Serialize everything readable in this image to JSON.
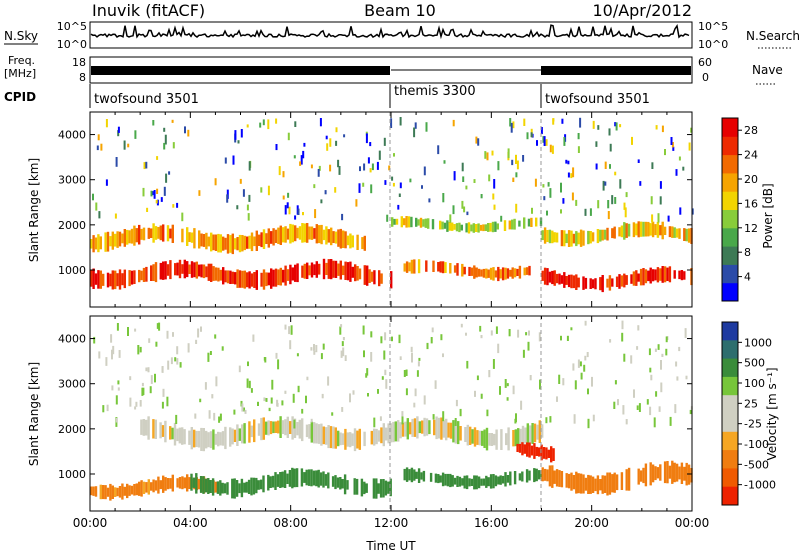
{
  "header": {
    "station": "Inuvik (fitACF)",
    "beam": "Beam 10",
    "date": "10/Apr/2012"
  },
  "sky_panel": {
    "left_label": "N.Sky",
    "right_label": "N.Search",
    "ticks": [
      "10^5",
      "10^0"
    ]
  },
  "freq_panel": {
    "left_label_top": "Freq.",
    "left_label_bottom": "[MHz]",
    "left_ticks": [
      "18",
      "8"
    ],
    "right_label": "Nave",
    "right_ticks": [
      "60",
      "0"
    ]
  },
  "cpid_panel": {
    "label": "CPID",
    "segments": [
      {
        "label": "twofsound 3501",
        "start_hour": 0,
        "end_hour": 12
      },
      {
        "label": "themis 3300",
        "start_hour": 12,
        "end_hour": 18
      },
      {
        "label": "twofsound 3501",
        "start_hour": 18,
        "end_hour": 24
      }
    ]
  },
  "colors": {
    "power_scale": [
      "#0000ff",
      "#2b4ba8",
      "#3d7a55",
      "#49a84a",
      "#88cc3a",
      "#f2d400",
      "#f6a400",
      "#f26a00",
      "#ee2a00",
      "#e60000"
    ],
    "velocity_scale": [
      "#1e3aa0",
      "#2d6e6e",
      "#3a8c3a",
      "#77c63a",
      "#cfcfc2",
      "#cfcfc2",
      "#f5a623",
      "#f07d10",
      "#f05a00",
      "#ee2200"
    ]
  },
  "chart_data": [
    {
      "type": "heatmap",
      "title": "",
      "xlabel": "",
      "ylabel": "Slant Range [km]",
      "xlim": [
        0,
        24
      ],
      "ylim": [
        180,
        4500
      ],
      "yticks": [
        "1000",
        "2000",
        "3000",
        "4000"
      ],
      "colorbar_label": "Power [dB]",
      "colorbar_ticks": [
        "4",
        "8",
        "12",
        "16",
        "20",
        "24",
        "28"
      ],
      "colorbar_range": [
        0,
        30
      ],
      "bands": [
        {
          "t_start": 0,
          "t_end": 12,
          "range_center": 900,
          "width": 350,
          "value": 26
        },
        {
          "t_start": 0,
          "t_end": 11,
          "range_center": 1700,
          "width": 350,
          "value": 20
        },
        {
          "t_start": 12.5,
          "t_end": 17.5,
          "range_center": 1000,
          "width": 250,
          "value": 22
        },
        {
          "t_start": 12,
          "t_end": 18,
          "range_center": 2000,
          "width": 200,
          "value": 14
        },
        {
          "t_start": 18,
          "t_end": 24,
          "range_center": 800,
          "width": 300,
          "value": 27
        },
        {
          "t_start": 18,
          "t_end": 24,
          "range_center": 1800,
          "width": 300,
          "value": 18
        }
      ]
    },
    {
      "type": "heatmap",
      "title": "",
      "xlabel": "Time UT",
      "ylabel": "Slant Range [km]",
      "xlim": [
        0,
        24
      ],
      "ylim": [
        180,
        4500
      ],
      "xticks": [
        "00:00",
        "04:00",
        "08:00",
        "12:00",
        "16:00",
        "20:00",
        "00:00"
      ],
      "yticks": [
        "1000",
        "2000",
        "3000",
        "4000"
      ],
      "colorbar_label": "Velocity [m s⁻¹]",
      "colorbar_ticks": [
        "1000",
        "500",
        "100",
        "25",
        "-25",
        "-100",
        "-500",
        "-1000"
      ],
      "bands": [
        {
          "t_start": 0,
          "t_end": 5,
          "range_center": 700,
          "width": 300,
          "value": -150
        },
        {
          "t_start": 4,
          "t_end": 12,
          "range_center": 800,
          "width": 350,
          "value": 300
        },
        {
          "t_start": 2,
          "t_end": 18,
          "range_center": 1900,
          "width": 400,
          "value": 0
        },
        {
          "t_start": 12.5,
          "t_end": 18,
          "range_center": 900,
          "width": 250,
          "value": 200
        },
        {
          "t_start": 18,
          "t_end": 24,
          "range_center": 900,
          "width": 400,
          "value": -300
        },
        {
          "t_start": 17,
          "t_end": 18.5,
          "range_center": 1500,
          "width": 300,
          "value": -800
        }
      ]
    }
  ]
}
